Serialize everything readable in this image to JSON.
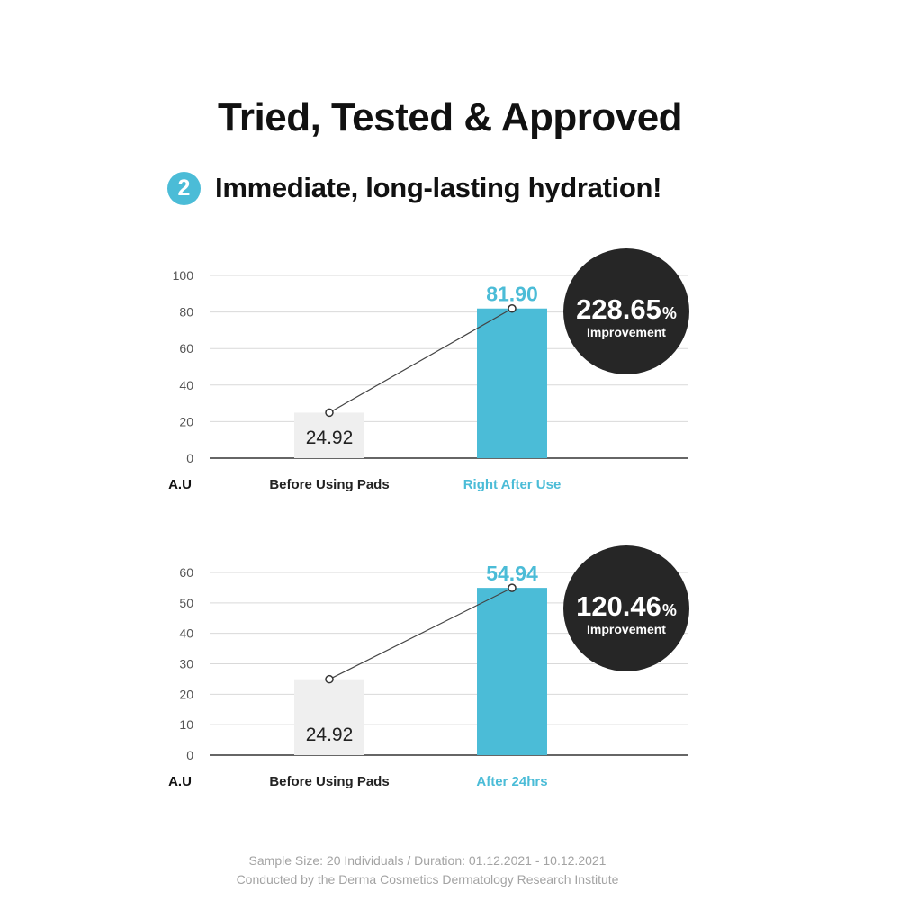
{
  "header": {
    "title": "Tried, Tested & Approved",
    "step_number": "2",
    "subtitle": "Immediate, long-lasting hydration!"
  },
  "colors": {
    "accent": "#4bbcd7",
    "before_bar": "#efefef",
    "badge_circle": "#262626"
  },
  "chart_data": [
    {
      "type": "bar",
      "categories": [
        "Before Using Pads",
        "Right After Use"
      ],
      "values": [
        24.92,
        81.9
      ],
      "value_labels": [
        "24.92",
        "81.90"
      ],
      "ylim": [
        0,
        100
      ],
      "yticks": [
        0,
        20,
        40,
        60,
        80,
        100
      ],
      "ylabel": "A.U",
      "xlabel": "",
      "grid": true,
      "connector_line": true,
      "badge": {
        "value": "228.65",
        "unit": "%",
        "label": "Improvement"
      }
    },
    {
      "type": "bar",
      "categories": [
        "Before Using Pads",
        "After 24hrs"
      ],
      "values": [
        24.92,
        54.94
      ],
      "value_labels": [
        "24.92",
        "54.94"
      ],
      "ylim": [
        0,
        60
      ],
      "yticks": [
        0,
        10,
        20,
        30,
        40,
        50,
        60
      ],
      "ylabel": "A.U",
      "xlabel": "",
      "grid": true,
      "connector_line": true,
      "badge": {
        "value": "120.46",
        "unit": "%",
        "label": "Improvement"
      }
    }
  ],
  "footer": {
    "line1": "Sample Size: 20 Individuals  /  Duration: 01.12.2021 - 10.12.2021",
    "line2": "Conducted by the Derma Cosmetics Dermatology Research Institute"
  }
}
